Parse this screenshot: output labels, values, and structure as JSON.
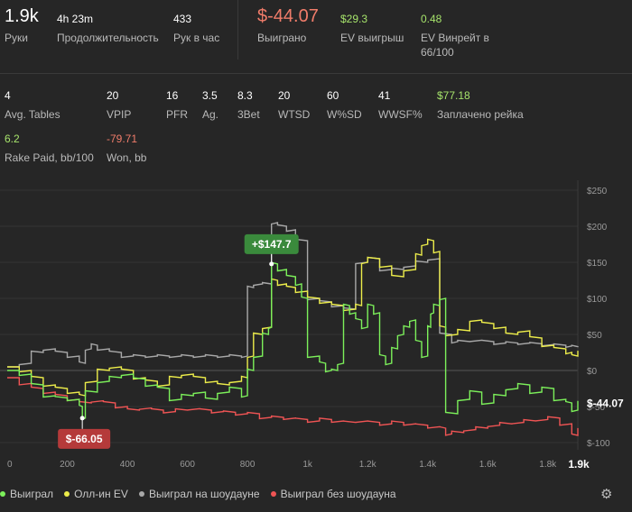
{
  "summary": [
    {
      "value": "1.9k",
      "label": "Руки"
    },
    {
      "value": "4h 23m",
      "label": "Продолжительность"
    },
    {
      "value": "433",
      "label": "Рук в час"
    },
    {
      "value": "$-44.07",
      "label": "Выиграно"
    },
    {
      "value": "$29.3",
      "label": "EV выигрыш"
    },
    {
      "value": "0.48",
      "label_line1": "EV Винрейт в",
      "label_line2": "66/100"
    }
  ],
  "stats": [
    {
      "value": "4",
      "label": "Avg. Tables"
    },
    {
      "value": "20",
      "label": "VPIP"
    },
    {
      "value": "16",
      "label": "PFR"
    },
    {
      "value": "3.5",
      "label": "Ag."
    },
    {
      "value": "8.3",
      "label": "3Bet"
    },
    {
      "value": "20",
      "label": "WTSD"
    },
    {
      "value": "60",
      "label": "W%SD"
    },
    {
      "value": "41",
      "label": "WWSF%"
    },
    {
      "value": "$77.18",
      "label": "Заплачено рейка"
    },
    {
      "value": "6.2",
      "label": "Rake Paid, bb/100"
    },
    {
      "value": "-79.71",
      "label": "Won, bb"
    }
  ],
  "colors": {
    "won": "#7cf05a",
    "allin_ev": "#ecec4a",
    "showdown": "#a8a8a8",
    "non_showdown": "#ef5454",
    "positive": "#a6e36b",
    "negative": "#f07c6a",
    "max_badge": "#3a8a3c",
    "min_badge": "#b53a3a"
  },
  "chart_data": {
    "type": "line",
    "xlim": [
      0,
      1900
    ],
    "ylim": [
      -100,
      250
    ],
    "x_ticks": [
      0,
      200,
      400,
      600,
      800,
      1000,
      1200,
      1400,
      1600,
      1800
    ],
    "x_tick_labels": [
      "0",
      "200",
      "400",
      "600",
      "800",
      "1k",
      "1.2k",
      "1.4k",
      "1.6k",
      "1.8k"
    ],
    "x_end_label": "1.9k",
    "y_ticks": [
      -100,
      -50,
      0,
      50,
      100,
      150,
      200,
      250
    ],
    "y_tick_labels": [
      "$-100",
      "$-50",
      "$0",
      "$50",
      "$100",
      "$150",
      "$200",
      "$250"
    ],
    "end_value_label": "$-44.07",
    "max_annotation": {
      "x": 880,
      "y": 147.7,
      "label": "+$147.7"
    },
    "min_annotation": {
      "x": 250,
      "y": -66.05,
      "label": "$-66.05"
    },
    "series": [
      {
        "name": "Выиграл",
        "color_key": "won",
        "x": [
          0,
          40,
          80,
          120,
          160,
          200,
          240,
          250,
          260,
          300,
          340,
          380,
          420,
          460,
          500,
          540,
          580,
          620,
          660,
          700,
          740,
          780,
          800,
          820,
          850,
          870,
          880,
          900,
          930,
          960,
          980,
          1000,
          1040,
          1060,
          1080,
          1100,
          1120,
          1140,
          1160,
          1180,
          1200,
          1220,
          1240,
          1260,
          1280,
          1300,
          1320,
          1340,
          1360,
          1380,
          1400,
          1410,
          1420,
          1440,
          1460,
          1500,
          1540,
          1580,
          1620,
          1660,
          1700,
          1740,
          1780,
          1820,
          1860,
          1880,
          1900
        ],
        "y": [
          0,
          -5,
          -20,
          -35,
          -38,
          -40,
          -50,
          -66.05,
          -30,
          -15,
          -10,
          -5,
          -12,
          -20,
          -25,
          -40,
          -35,
          -30,
          -40,
          -30,
          -25,
          -35,
          0,
          20,
          50,
          60,
          147.7,
          140,
          130,
          120,
          100,
          20,
          10,
          0,
          0,
          10,
          90,
          80,
          70,
          60,
          90,
          80,
          20,
          10,
          30,
          50,
          60,
          70,
          40,
          20,
          60,
          80,
          90,
          100,
          -60,
          -40,
          -30,
          -45,
          -35,
          -25,
          -20,
          -30,
          -25,
          -40,
          -45,
          -55,
          -44.07
        ]
      },
      {
        "name": "Олл-ин EV",
        "color_key": "allin_ev",
        "x": [
          0,
          40,
          80,
          120,
          160,
          200,
          240,
          260,
          300,
          340,
          380,
          420,
          460,
          500,
          540,
          580,
          620,
          660,
          700,
          740,
          780,
          800,
          820,
          850,
          880,
          900,
          930,
          960,
          1000,
          1040,
          1080,
          1120,
          1160,
          1180,
          1200,
          1240,
          1280,
          1320,
          1360,
          1380,
          1400,
          1420,
          1440,
          1460,
          1500,
          1540,
          1580,
          1620,
          1660,
          1700,
          1740,
          1780,
          1820,
          1860,
          1880,
          1900
        ],
        "y": [
          5,
          0,
          -10,
          -20,
          -25,
          -30,
          -35,
          -15,
          0,
          5,
          0,
          -10,
          -15,
          -20,
          -10,
          -5,
          -10,
          -15,
          -20,
          -15,
          -10,
          20,
          50,
          60,
          125,
          120,
          115,
          110,
          100,
          95,
          90,
          85,
          90,
          150,
          155,
          145,
          130,
          140,
          160,
          175,
          180,
          165,
          60,
          50,
          55,
          70,
          65,
          60,
          50,
          55,
          45,
          35,
          30,
          25,
          20,
          29.3
        ]
      },
      {
        "name": "Выиграл на шоудауне",
        "color_key": "showdown",
        "x": [
          0,
          40,
          80,
          120,
          160,
          200,
          240,
          260,
          280,
          300,
          340,
          380,
          420,
          460,
          500,
          540,
          580,
          620,
          660,
          700,
          740,
          780,
          800,
          820,
          850,
          880,
          900,
          930,
          960,
          1000,
          1040,
          1080,
          1120,
          1160,
          1200,
          1240,
          1280,
          1320,
          1360,
          1400,
          1440,
          1480,
          1500,
          1540,
          1580,
          1620,
          1660,
          1700,
          1740,
          1780,
          1820,
          1860,
          1880,
          1900
        ],
        "y": [
          5,
          10,
          25,
          30,
          25,
          20,
          10,
          30,
          35,
          30,
          25,
          20,
          20,
          20,
          20,
          20,
          20,
          20,
          20,
          20,
          20,
          20,
          115,
          120,
          120,
          205,
          200,
          195,
          180,
          100,
          95,
          90,
          85,
          150,
          155,
          140,
          140,
          145,
          150,
          155,
          50,
          40,
          40,
          42,
          40,
          38,
          38,
          38,
          37,
          36,
          35,
          34,
          33,
          34
        ]
      },
      {
        "name": "Выиграл без шоудауна",
        "color_key": "non_showdown",
        "x": [
          0,
          40,
          80,
          120,
          160,
          200,
          240,
          280,
          320,
          360,
          400,
          440,
          480,
          520,
          560,
          600,
          640,
          680,
          720,
          760,
          800,
          840,
          880,
          920,
          960,
          1000,
          1040,
          1080,
          1120,
          1160,
          1200,
          1240,
          1280,
          1320,
          1360,
          1400,
          1440,
          1460,
          1480,
          1520,
          1560,
          1600,
          1640,
          1680,
          1720,
          1760,
          1800,
          1840,
          1880,
          1900
        ],
        "y": [
          -10,
          -18,
          -25,
          -30,
          -35,
          -40,
          -45,
          -42,
          -45,
          -50,
          -55,
          -52,
          -55,
          -57,
          -55,
          -53,
          -55,
          -57,
          -58,
          -60,
          -60,
          -65,
          -65,
          -66,
          -68,
          -70,
          -68,
          -70,
          -72,
          -70,
          -72,
          -74,
          -72,
          -74,
          -76,
          -78,
          -80,
          -88,
          -86,
          -82,
          -80,
          -76,
          -74,
          -72,
          -70,
          -68,
          -66,
          -74,
          -90,
          -78
        ]
      }
    ]
  },
  "legend": [
    "Выиграл",
    "Олл-ин EV",
    "Выиграл на шоудауне",
    "Выиграл без шоудауна"
  ],
  "icons": {
    "settings": "gear-icon"
  }
}
